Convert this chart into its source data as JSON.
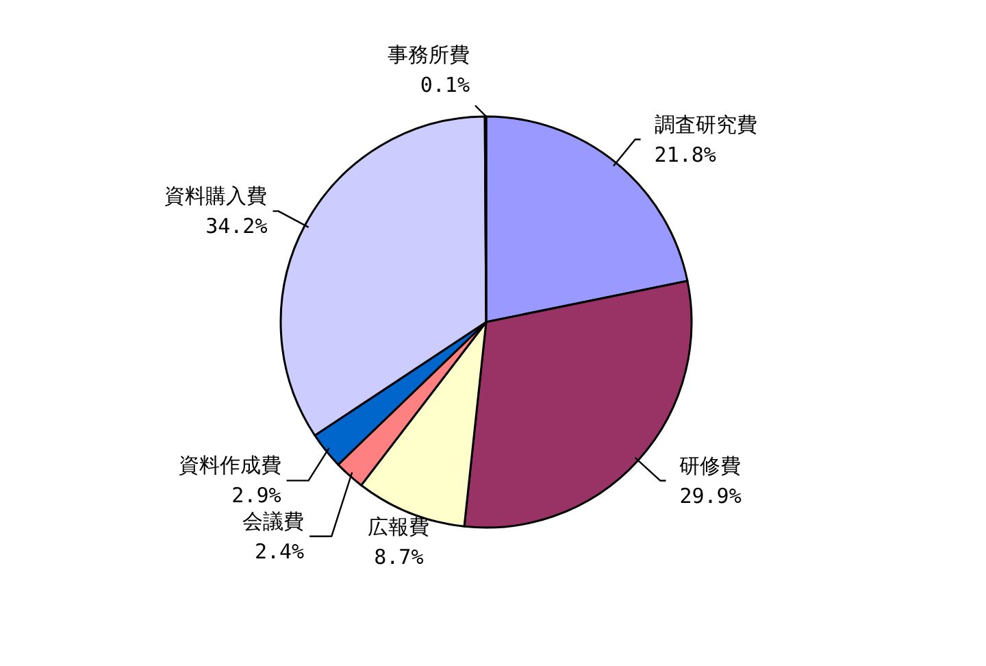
{
  "chart_data": {
    "type": "pie",
    "categories": [
      "調査研究費",
      "研修費",
      "広報費",
      "会議費",
      "資料作成費",
      "資料購入費",
      "事務所費"
    ],
    "values": [
      21.8,
      29.9,
      8.7,
      2.4,
      2.9,
      34.2,
      0.1
    ],
    "colors": [
      "#9999ff",
      "#993366",
      "#ffffcc",
      "#ff8080",
      "#0066cc",
      "#ccccff",
      "#000000"
    ],
    "value_labels": [
      "21.8%",
      "29.9%",
      "8.7%",
      "2.4%",
      "2.9%",
      "34.2%",
      "0.1%"
    ]
  }
}
